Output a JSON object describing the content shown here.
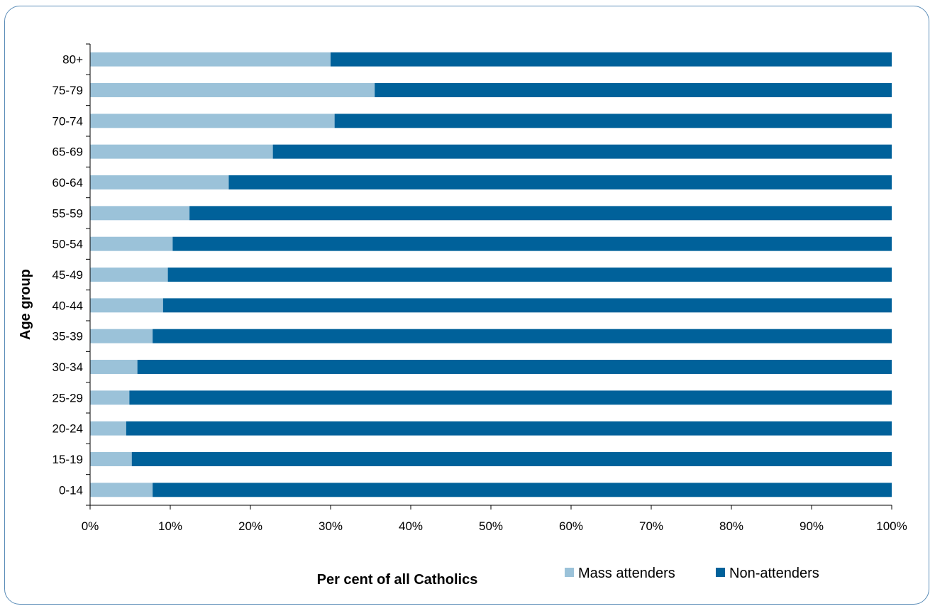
{
  "chart_data": {
    "type": "bar",
    "orientation": "horizontal",
    "stacked": "percent",
    "title": "",
    "xlabel": "Per cent of all Catholics",
    "ylabel": "Age group",
    "xlim": [
      0,
      100
    ],
    "x_ticks": [
      "0%",
      "10%",
      "20%",
      "30%",
      "40%",
      "50%",
      "60%",
      "70%",
      "80%",
      "90%",
      "100%"
    ],
    "categories": [
      "80+",
      "75-79",
      "70-74",
      "65-69",
      "60-64",
      "55-59",
      "50-54",
      "45-49",
      "40-44",
      "35-39",
      "30-34",
      "25-29",
      "20-24",
      "15-19",
      "0-14"
    ],
    "series": [
      {
        "name": "Mass attenders",
        "color": "#9bc2d9",
        "values": [
          30,
          35.5,
          30.5,
          22.8,
          17.3,
          12.4,
          10.3,
          9.7,
          9.1,
          7.8,
          5.9,
          4.9,
          4.5,
          5.2,
          7.8
        ]
      },
      {
        "name": "Non-attenders",
        "color": "#00619a",
        "values": [
          70,
          64.5,
          69.5,
          77.2,
          82.7,
          87.6,
          89.7,
          90.3,
          90.9,
          92.2,
          94.1,
          95.1,
          95.5,
          94.8,
          92.2
        ]
      }
    ],
    "grid": false,
    "legend_position": "bottom-right"
  }
}
